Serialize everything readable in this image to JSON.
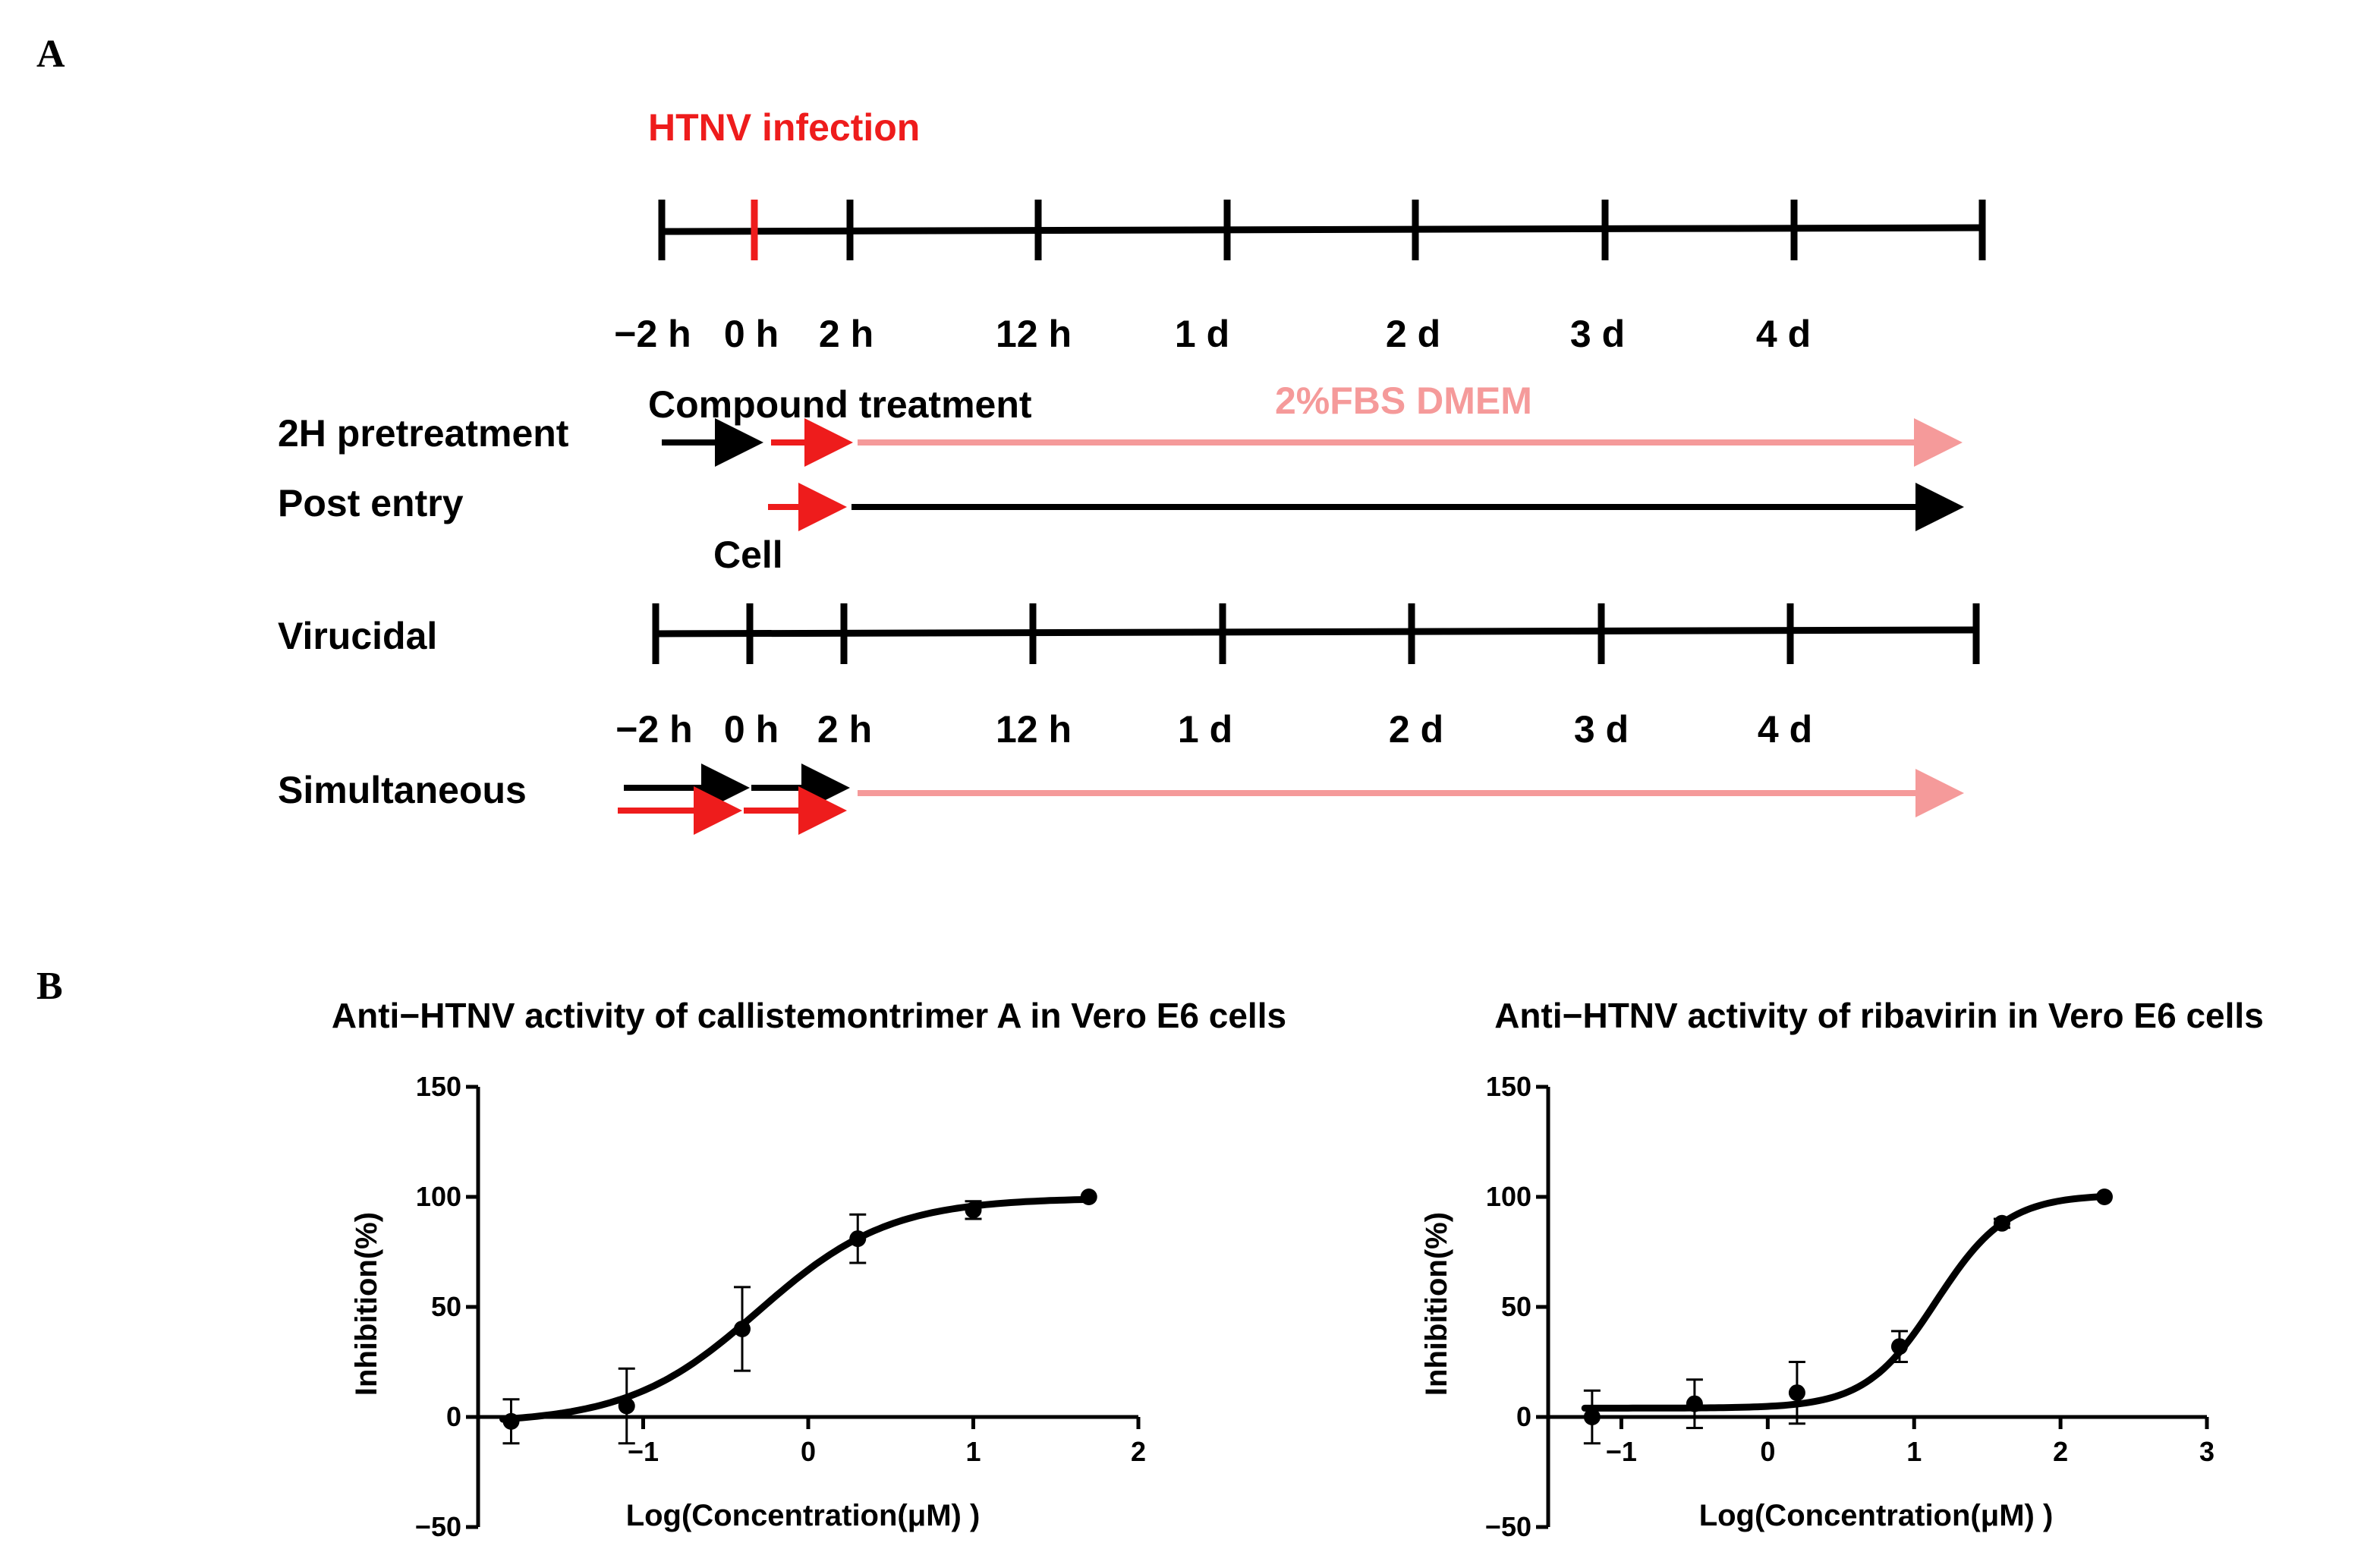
{
  "panel_a": {
    "label": "A",
    "infection_label": "HTNV infection",
    "compound_label": "Compound treatment",
    "medium_label": "2%FBS DMEM",
    "cell_label": "Cell",
    "time_labels_top": [
      "−2 h",
      "0 h",
      "2 h",
      "12 h",
      "1 d",
      "2 d",
      "3 d",
      "4 d"
    ],
    "time_labels_bottom": [
      "−2 h",
      "0 h",
      "2 h",
      "12 h",
      "1 d",
      "2 d",
      "3 d",
      "4 d"
    ],
    "rows": {
      "pretreatment": "2H pretreatment",
      "post_entry": "Post entry",
      "virucidal": "Virucidal",
      "simultaneous": "Simultaneous"
    },
    "colors": {
      "black": "#000000",
      "red": "#ee1c1c",
      "pink": "#f59a9a"
    }
  },
  "panel_b": {
    "label": "B"
  },
  "chart_data": [
    {
      "type": "scatter",
      "fit": "sigmoidal dose-response",
      "title": "Anti−HTNV activity of callistemontrimer A in Vero E6 cells",
      "xlabel": "Log(Concentration(μM) )",
      "ylabel": "Inhibition(%)",
      "xlim": [
        -2.0,
        2.0
      ],
      "ylim": [
        -50,
        150
      ],
      "xticks": [
        -1,
        0,
        1,
        2
      ],
      "yticks": [
        -50,
        0,
        50,
        100,
        150
      ],
      "xtick_labels": [
        "−1",
        "0",
        "1",
        "2"
      ],
      "ytick_labels": [
        "−50",
        "0",
        "50",
        "100",
        "150"
      ],
      "x": [
        -1.8,
        -1.1,
        -0.4,
        0.3,
        1.0,
        1.7
      ],
      "y": [
        -2,
        5,
        40,
        81,
        94,
        100
      ],
      "error": [
        10,
        17,
        19,
        11,
        4,
        0
      ],
      "curve": {
        "bottom": -3,
        "top": 99.5,
        "logEC50": -0.3,
        "hill": 1.1
      }
    },
    {
      "type": "scatter",
      "fit": "sigmoidal dose-response",
      "title": "Anti−HTNV activity of ribavirin in Vero E6 cells",
      "xlabel": "Log(Concentration(μM) )",
      "ylabel": "Inhibition(%)",
      "xlim": [
        -1.5,
        3.0
      ],
      "ylim": [
        -50,
        150
      ],
      "xticks": [
        -1,
        0,
        1,
        2,
        3
      ],
      "yticks": [
        -50,
        0,
        50,
        100,
        150
      ],
      "xtick_labels": [
        "−1",
        "0",
        "1",
        "2",
        "3"
      ],
      "ytick_labels": [
        "−50",
        "0",
        "50",
        "100",
        "150"
      ],
      "x": [
        -1.2,
        -0.5,
        0.2,
        0.9,
        1.6,
        2.3
      ],
      "y": [
        0,
        6,
        11,
        32,
        88,
        100
      ],
      "error": [
        12,
        11,
        14,
        7,
        2,
        0
      ],
      "curve": {
        "bottom": 4,
        "top": 101,
        "logEC50": 1.15,
        "hill": 1.8
      }
    }
  ]
}
